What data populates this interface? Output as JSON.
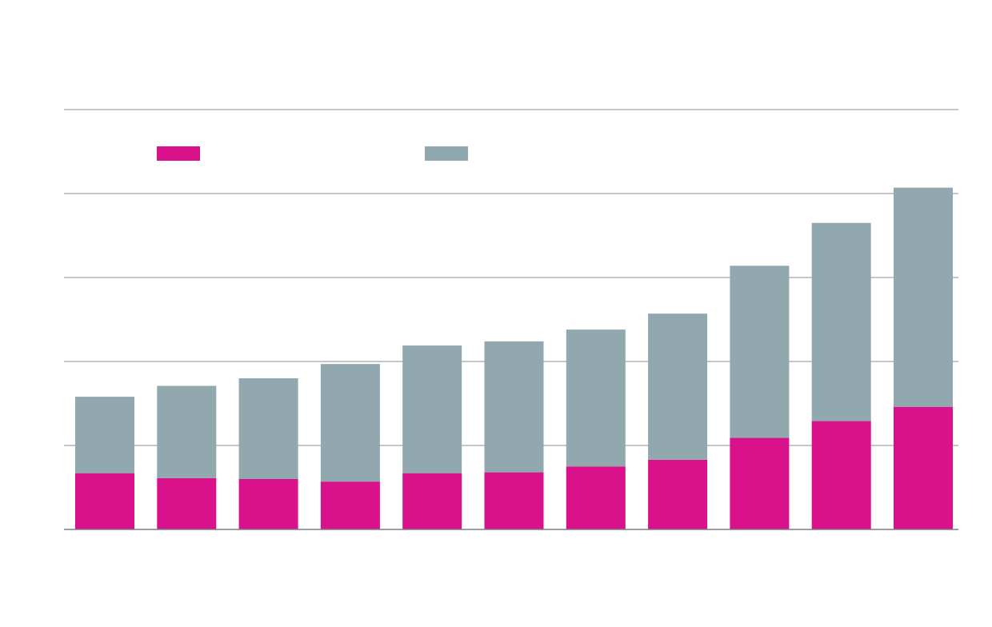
{
  "colors": {
    "background": "#ffffff",
    "gridline": "#8a8f93",
    "baseline": "#7a7f83"
  },
  "chart_data": {
    "type": "bar",
    "stacked": true,
    "title": "",
    "xlabel": "",
    "ylabel": "",
    "ylim": [
      0,
      5
    ],
    "y_gridlines": [
      1,
      2,
      3,
      4,
      5
    ],
    "grid": true,
    "legend_position": "top-left",
    "categories": [
      "",
      "",
      "",
      "",
      "",
      "",
      "",
      "",
      "",
      "",
      ""
    ],
    "series": [
      {
        "color": "#d9118a",
        "values": [
          0.67,
          0.61,
          0.6,
          0.57,
          0.67,
          0.68,
          0.75,
          0.83,
          1.09,
          1.29,
          1.46
        ]
      },
      {
        "color": "#91a8ae",
        "values": [
          0.91,
          1.1,
          1.2,
          1.4,
          1.52,
          1.56,
          1.63,
          1.74,
          2.05,
          2.36,
          2.61
        ]
      }
    ]
  }
}
